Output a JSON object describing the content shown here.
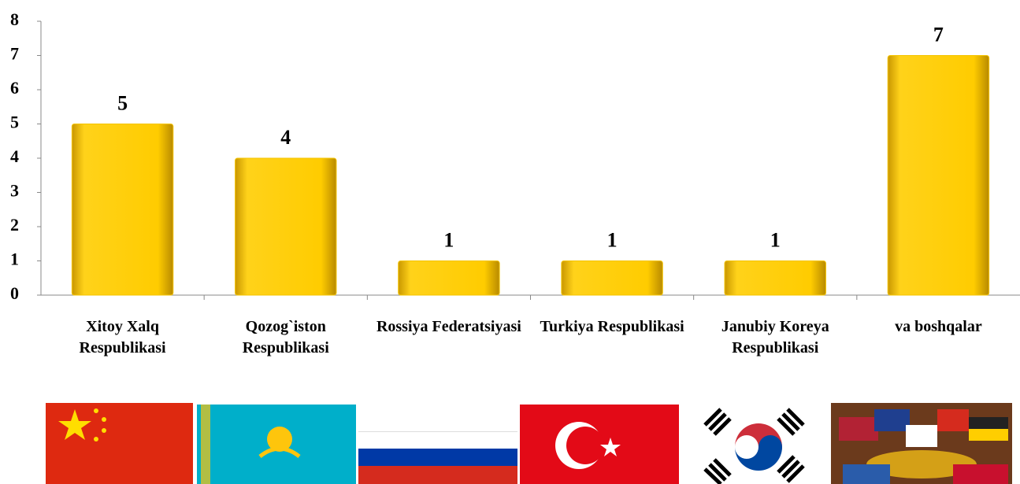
{
  "chart_data": {
    "type": "bar",
    "categories": [
      "Xitoy Xalq Respublikasi",
      "Qozog`iston Respublikasi",
      "Rossiya Federatsiyasi",
      "Turkiya Respublikasi",
      "Janubiy Koreya Respublikasi",
      "va boshqalar"
    ],
    "values": [
      5,
      4,
      1,
      1,
      1,
      7
    ],
    "color": "#f5c400",
    "ylim": [
      0,
      8
    ],
    "yticks": [
      0,
      1,
      2,
      3,
      4,
      5,
      6,
      7,
      8
    ],
    "grid": false
  }
}
